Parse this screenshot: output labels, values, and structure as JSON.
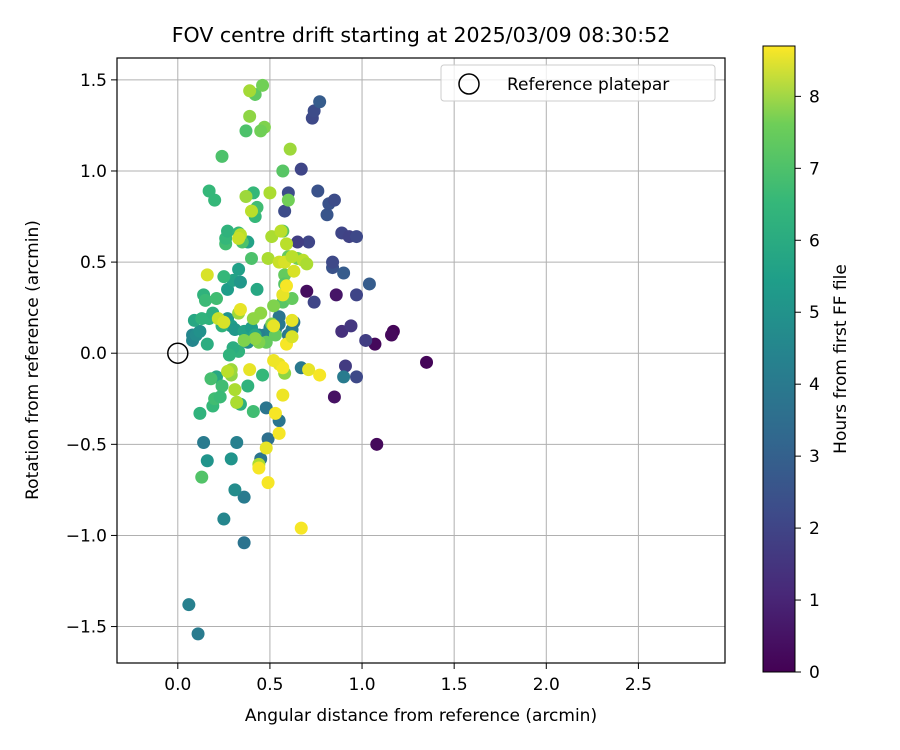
{
  "chart_data": {
    "type": "scatter",
    "title": "FOV centre drift starting at 2025/03/09 08:30:52",
    "xlabel": "Angular distance from reference (arcmin)",
    "ylabel": "Rotation from reference (arcmin)",
    "xlim": [
      -0.33,
      2.97
    ],
    "ylim": [
      -1.7,
      1.62
    ],
    "xticks": [
      "0.0",
      "0.5",
      "1.0",
      "1.5",
      "2.0",
      "2.5"
    ],
    "yticks": [
      "−1.5",
      "−1.0",
      "−0.5",
      "0.0",
      "0.5",
      "1.0",
      "1.5"
    ],
    "grid": true,
    "legend": {
      "placement": "top-right",
      "entries": [
        "Reference platepar"
      ]
    },
    "reference_point": {
      "x": 0.0,
      "y": 0.0
    },
    "colorbar": {
      "label": "Hours from first FF file",
      "range": [
        0,
        8.7
      ],
      "ticks": [
        "0",
        "1",
        "2",
        "3",
        "4",
        "5",
        "6",
        "7",
        "8"
      ],
      "colormap": "viridis"
    },
    "points": [
      {
        "x": 1.35,
        "y": -0.05,
        "h": 0.1
      },
      {
        "x": 1.17,
        "y": 0.12,
        "h": 0.1
      },
      {
        "x": 1.16,
        "y": 0.1,
        "h": 0.2
      },
      {
        "x": 1.07,
        "y": 0.05,
        "h": 0.2
      },
      {
        "x": 1.08,
        "y": -0.5,
        "h": 0.2
      },
      {
        "x": 0.85,
        "y": -0.24,
        "h": 0.4
      },
      {
        "x": 0.86,
        "y": 0.32,
        "h": 0.5
      },
      {
        "x": 0.7,
        "y": 0.34,
        "h": 0.3
      },
      {
        "x": 0.89,
        "y": 0.12,
        "h": 1.2
      },
      {
        "x": 0.94,
        "y": 0.15,
        "h": 1.4
      },
      {
        "x": 1.02,
        "y": 0.07,
        "h": 1.6
      },
      {
        "x": 0.91,
        "y": -0.07,
        "h": 1.5
      },
      {
        "x": 0.97,
        "y": -0.13,
        "h": 1.9
      },
      {
        "x": 0.97,
        "y": 0.32,
        "h": 1.8
      },
      {
        "x": 1.04,
        "y": 0.38,
        "h": 2.5
      },
      {
        "x": 0.74,
        "y": 0.28,
        "h": 1.8
      },
      {
        "x": 0.89,
        "y": 0.66,
        "h": 1.8
      },
      {
        "x": 0.93,
        "y": 0.64,
        "h": 1.7
      },
      {
        "x": 0.97,
        "y": 0.64,
        "h": 1.9
      },
      {
        "x": 0.84,
        "y": 0.47,
        "h": 2.2
      },
      {
        "x": 0.84,
        "y": 0.5,
        "h": 1.9
      },
      {
        "x": 0.9,
        "y": 0.44,
        "h": 2.5
      },
      {
        "x": 0.71,
        "y": 0.61,
        "h": 1.8
      },
      {
        "x": 0.65,
        "y": 0.61,
        "h": 1.6
      },
      {
        "x": 0.81,
        "y": 0.76,
        "h": 2.3
      },
      {
        "x": 0.82,
        "y": 0.82,
        "h": 2.2
      },
      {
        "x": 0.85,
        "y": 0.84,
        "h": 2.0
      },
      {
        "x": 0.76,
        "y": 0.89,
        "h": 2.2
      },
      {
        "x": 0.6,
        "y": 0.88,
        "h": 2.0
      },
      {
        "x": 0.58,
        "y": 0.78,
        "h": 2.0
      },
      {
        "x": 0.67,
        "y": 1.01,
        "h": 1.8
      },
      {
        "x": 0.73,
        "y": 1.29,
        "h": 1.9
      },
      {
        "x": 0.74,
        "y": 1.33,
        "h": 2.0
      },
      {
        "x": 0.77,
        "y": 1.38,
        "h": 2.5
      },
      {
        "x": 0.9,
        "y": -0.13,
        "h": 3.6
      },
      {
        "x": 0.67,
        "y": -0.08,
        "h": 3.5
      },
      {
        "x": 0.55,
        "y": -0.37,
        "h": 3.4
      },
      {
        "x": 0.48,
        "y": -0.3,
        "h": 3.4
      },
      {
        "x": 0.45,
        "y": -0.58,
        "h": 3.4
      },
      {
        "x": 0.49,
        "y": -0.47,
        "h": 3.2
      },
      {
        "x": 0.36,
        "y": -0.79,
        "h": 3.6
      },
      {
        "x": 0.36,
        "y": -1.04,
        "h": 3.3
      },
      {
        "x": 0.32,
        "y": -0.49,
        "h": 3.8
      },
      {
        "x": 0.14,
        "y": -0.49,
        "h": 3.6
      },
      {
        "x": 0.16,
        "y": -0.59,
        "h": 4.5
      },
      {
        "x": 0.06,
        "y": -1.38,
        "h": 3.8
      },
      {
        "x": 0.11,
        "y": -1.54,
        "h": 3.6
      },
      {
        "x": 0.25,
        "y": -0.91,
        "h": 4.0
      },
      {
        "x": 0.31,
        "y": -0.75,
        "h": 4.2
      },
      {
        "x": 0.29,
        "y": -0.58,
        "h": 4.5
      },
      {
        "x": 0.53,
        "y": 0.13,
        "h": 3.5
      },
      {
        "x": 0.55,
        "y": 0.16,
        "h": 3.5
      },
      {
        "x": 0.55,
        "y": 0.2,
        "h": 3.4
      },
      {
        "x": 0.6,
        "y": 0.1,
        "h": 3.5
      },
      {
        "x": 0.62,
        "y": 0.13,
        "h": 3.6
      },
      {
        "x": 0.63,
        "y": 0.17,
        "h": 3.4
      },
      {
        "x": 0.5,
        "y": 0.14,
        "h": 3.8
      },
      {
        "x": 0.47,
        "y": 0.1,
        "h": 4.0
      },
      {
        "x": 0.44,
        "y": 0.1,
        "h": 3.8
      },
      {
        "x": 0.38,
        "y": 0.06,
        "h": 4.2
      },
      {
        "x": 0.08,
        "y": 0.07,
        "h": 4.0
      },
      {
        "x": 0.08,
        "y": 0.1,
        "h": 4.0
      },
      {
        "x": 0.1,
        "y": 0.1,
        "h": 4.2
      },
      {
        "x": 0.12,
        "y": 0.12,
        "h": 4.4
      },
      {
        "x": 0.27,
        "y": 0.19,
        "h": 4.5
      },
      {
        "x": 0.29,
        "y": 0.15,
        "h": 4.8
      },
      {
        "x": 0.31,
        "y": 0.13,
        "h": 4.6
      },
      {
        "x": 0.36,
        "y": 0.12,
        "h": 5.0
      },
      {
        "x": 0.4,
        "y": 0.14,
        "h": 4.8
      },
      {
        "x": 0.27,
        "y": 0.35,
        "h": 4.8
      },
      {
        "x": 0.3,
        "y": 0.4,
        "h": 5.0
      },
      {
        "x": 0.34,
        "y": 0.39,
        "h": 4.6
      },
      {
        "x": 0.33,
        "y": 0.46,
        "h": 4.9
      },
      {
        "x": 0.38,
        "y": 0.61,
        "h": 5.0
      },
      {
        "x": 0.43,
        "y": 0.35,
        "h": 5.2
      },
      {
        "x": 0.42,
        "y": 0.1,
        "h": 5.2
      },
      {
        "x": 0.21,
        "y": -0.13,
        "h": 5.2
      },
      {
        "x": 0.16,
        "y": 0.05,
        "h": 5.4
      },
      {
        "x": 0.09,
        "y": 0.18,
        "h": 5.2
      },
      {
        "x": 0.13,
        "y": 0.19,
        "h": 5.6
      },
      {
        "x": 0.17,
        "y": 0.19,
        "h": 5.6
      },
      {
        "x": 0.19,
        "y": 0.22,
        "h": 5.5
      },
      {
        "x": 0.24,
        "y": 0.15,
        "h": 5.6
      },
      {
        "x": 0.33,
        "y": 0.01,
        "h": 5.6
      },
      {
        "x": 0.3,
        "y": 0.03,
        "h": 5.4
      },
      {
        "x": 0.28,
        "y": -0.01,
        "h": 5.6
      },
      {
        "x": 0.32,
        "y": -0.27,
        "h": 5.4
      },
      {
        "x": 0.34,
        "y": -0.28,
        "h": 5.5
      },
      {
        "x": 0.38,
        "y": -0.18,
        "h": 5.6
      },
      {
        "x": 0.46,
        "y": -0.12,
        "h": 5.8
      },
      {
        "x": 0.12,
        "y": -0.33,
        "h": 5.6
      },
      {
        "x": 0.19,
        "y": -0.29,
        "h": 5.8
      },
      {
        "x": 0.2,
        "y": -0.25,
        "h": 6.0
      },
      {
        "x": 0.18,
        "y": -0.14,
        "h": 6.1
      },
      {
        "x": 0.24,
        "y": -0.18,
        "h": 6.0
      },
      {
        "x": 0.41,
        "y": -0.32,
        "h": 6.0
      },
      {
        "x": 0.13,
        "y": -0.68,
        "h": 6.3
      },
      {
        "x": 0.23,
        "y": -0.24,
        "h": 5.9
      },
      {
        "x": 0.14,
        "y": 0.32,
        "h": 5.6
      },
      {
        "x": 0.15,
        "y": 0.29,
        "h": 5.9
      },
      {
        "x": 0.21,
        "y": 0.3,
        "h": 6.0
      },
      {
        "x": 0.25,
        "y": 0.42,
        "h": 5.8
      },
      {
        "x": 0.26,
        "y": 0.6,
        "h": 6.0
      },
      {
        "x": 0.26,
        "y": 0.63,
        "h": 5.8
      },
      {
        "x": 0.27,
        "y": 0.67,
        "h": 5.6
      },
      {
        "x": 0.33,
        "y": 0.66,
        "h": 5.8
      },
      {
        "x": 0.35,
        "y": 0.61,
        "h": 6.2
      },
      {
        "x": 0.4,
        "y": 0.52,
        "h": 6.2
      },
      {
        "x": 0.42,
        "y": 0.75,
        "h": 5.8
      },
      {
        "x": 0.43,
        "y": 0.8,
        "h": 6.0
      },
      {
        "x": 0.41,
        "y": 0.88,
        "h": 5.8
      },
      {
        "x": 0.2,
        "y": 0.84,
        "h": 5.8
      },
      {
        "x": 0.17,
        "y": 0.89,
        "h": 5.8
      },
      {
        "x": 0.24,
        "y": 1.08,
        "h": 6.2
      },
      {
        "x": 0.37,
        "y": 1.22,
        "h": 6.2
      },
      {
        "x": 0.42,
        "y": 1.42,
        "h": 6.5
      },
      {
        "x": 0.46,
        "y": 1.47,
        "h": 6.8
      },
      {
        "x": 0.47,
        "y": 1.24,
        "h": 7.0
      },
      {
        "x": 0.45,
        "y": 1.22,
        "h": 6.8
      },
      {
        "x": 0.39,
        "y": 1.3,
        "h": 7.2
      },
      {
        "x": 0.39,
        "y": 1.44,
        "h": 7.5
      },
      {
        "x": 0.57,
        "y": 1.0,
        "h": 6.4
      },
      {
        "x": 0.61,
        "y": 1.12,
        "h": 7.4
      },
      {
        "x": 0.57,
        "y": 0.67,
        "h": 6.4
      },
      {
        "x": 0.6,
        "y": 0.84,
        "h": 6.8
      },
      {
        "x": 0.6,
        "y": 0.53,
        "h": 6.6
      },
      {
        "x": 0.65,
        "y": 0.52,
        "h": 6.8
      },
      {
        "x": 0.58,
        "y": 0.43,
        "h": 6.6
      },
      {
        "x": 0.58,
        "y": 0.38,
        "h": 6.4
      },
      {
        "x": 0.57,
        "y": 0.28,
        "h": 6.4
      },
      {
        "x": 0.62,
        "y": 0.3,
        "h": 6.6
      },
      {
        "x": 0.48,
        "y": 0.06,
        "h": 6.6
      },
      {
        "x": 0.53,
        "y": 0.1,
        "h": 6.6
      },
      {
        "x": 0.51,
        "y": 0.16,
        "h": 7.0
      },
      {
        "x": 0.44,
        "y": 0.06,
        "h": 7.0
      },
      {
        "x": 0.42,
        "y": 0.08,
        "h": 7.2
      },
      {
        "x": 0.41,
        "y": 0.19,
        "h": 7.2
      },
      {
        "x": 0.45,
        "y": 0.22,
        "h": 7.2
      },
      {
        "x": 0.33,
        "y": 0.22,
        "h": 7.4
      },
      {
        "x": 0.36,
        "y": 0.07,
        "h": 7.0
      },
      {
        "x": 0.52,
        "y": 0.26,
        "h": 7.0
      },
      {
        "x": 0.58,
        "y": -0.11,
        "h": 7.2
      },
      {
        "x": 0.29,
        "y": -0.12,
        "h": 7.2
      },
      {
        "x": 0.29,
        "y": -0.09,
        "h": 7.4
      },
      {
        "x": 0.31,
        "y": -0.2,
        "h": 7.6
      },
      {
        "x": 0.32,
        "y": -0.27,
        "h": 7.6
      },
      {
        "x": 0.27,
        "y": -0.1,
        "h": 7.8
      },
      {
        "x": 0.44,
        "y": -0.61,
        "h": 7.6
      },
      {
        "x": 0.49,
        "y": 0.52,
        "h": 7.6
      },
      {
        "x": 0.5,
        "y": 0.88,
        "h": 7.6
      },
      {
        "x": 0.37,
        "y": 0.86,
        "h": 7.4
      },
      {
        "x": 0.4,
        "y": 0.78,
        "h": 7.8
      },
      {
        "x": 0.51,
        "y": 0.64,
        "h": 7.6
      },
      {
        "x": 0.34,
        "y": 0.65,
        "h": 7.8
      },
      {
        "x": 0.33,
        "y": 0.63,
        "h": 8.0
      },
      {
        "x": 0.55,
        "y": 0.5,
        "h": 8.0
      },
      {
        "x": 0.58,
        "y": 0.5,
        "h": 8.2
      },
      {
        "x": 0.63,
        "y": 0.45,
        "h": 8.2
      },
      {
        "x": 0.62,
        "y": 0.53,
        "h": 7.8
      },
      {
        "x": 0.68,
        "y": 0.51,
        "h": 7.8
      },
      {
        "x": 0.7,
        "y": 0.49,
        "h": 7.6
      },
      {
        "x": 0.59,
        "y": 0.6,
        "h": 7.8
      },
      {
        "x": 0.56,
        "y": 0.67,
        "h": 7.8
      },
      {
        "x": 0.16,
        "y": 0.43,
        "h": 8.2
      },
      {
        "x": 0.22,
        "y": 0.19,
        "h": 8.0
      },
      {
        "x": 0.25,
        "y": 0.17,
        "h": 8.2
      },
      {
        "x": 0.34,
        "y": 0.24,
        "h": 8.4
      },
      {
        "x": 0.52,
        "y": 0.15,
        "h": 8.4
      },
      {
        "x": 0.57,
        "y": 0.32,
        "h": 8.4
      },
      {
        "x": 0.59,
        "y": 0.37,
        "h": 8.6
      },
      {
        "x": 0.59,
        "y": 0.05,
        "h": 8.6
      },
      {
        "x": 0.62,
        "y": 0.18,
        "h": 8.4
      },
      {
        "x": 0.62,
        "y": 0.09,
        "h": 8.2
      },
      {
        "x": 0.55,
        "y": -0.06,
        "h": 8.4
      },
      {
        "x": 0.57,
        "y": -0.08,
        "h": 8.6
      },
      {
        "x": 0.52,
        "y": -0.04,
        "h": 8.5
      },
      {
        "x": 0.39,
        "y": -0.09,
        "h": 8.4
      },
      {
        "x": 0.71,
        "y": -0.09,
        "h": 8.4
      },
      {
        "x": 0.77,
        "y": -0.12,
        "h": 8.6
      },
      {
        "x": 0.53,
        "y": -0.33,
        "h": 8.6
      },
      {
        "x": 0.55,
        "y": -0.44,
        "h": 8.6
      },
      {
        "x": 0.57,
        "y": -0.23,
        "h": 8.5
      },
      {
        "x": 0.48,
        "y": -0.52,
        "h": 8.4
      },
      {
        "x": 0.49,
        "y": -0.71,
        "h": 8.6
      },
      {
        "x": 0.44,
        "y": -0.63,
        "h": 8.6
      },
      {
        "x": 0.67,
        "y": -0.96,
        "h": 8.6
      }
    ]
  }
}
